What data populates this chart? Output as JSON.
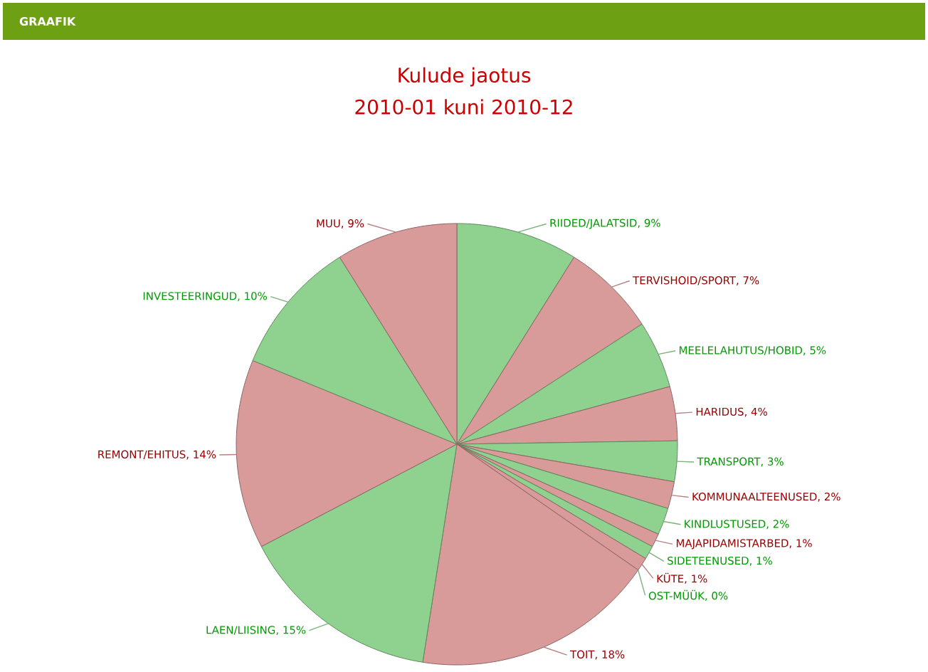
{
  "chart_data": {
    "type": "pie",
    "title": "Kulude jaotus",
    "subtitle": "2010-01 kuni 2010-12",
    "annotations": [
      "GRAAFIK"
    ],
    "categories": [
      "RIIDED/JALATSID",
      "TERVISHOID/SPORT",
      "MEELELAHUTUS/HOBID",
      "HARIDUS",
      "TRANSPORT",
      "KOMMUNAALTEENUSED",
      "KINDLUSTUSED",
      "MAJAPIDAMISTARBED",
      "SIDETEENUSED",
      "KÜTE",
      "OST-MÜÜK",
      "TOIT",
      "LAEN/LIISING",
      "REMONT/EHITUS",
      "INVESTEERINGUD",
      "MUU"
    ],
    "values": [
      9,
      7,
      5,
      4,
      3,
      2,
      2,
      1,
      1,
      1,
      0,
      18,
      15,
      14,
      10,
      9
    ],
    "value_labels": [
      ", 9%",
      ", 7%",
      ", 5%",
      ", 4%",
      ", 3%",
      ", 2%",
      ", 2%",
      ", 1%",
      ", 1%",
      ", 1%",
      ", 0%",
      ", 18%",
      ", 15%",
      ", 14%",
      ", 10%",
      ", 9%"
    ],
    "colors": [
      "#8fd18f",
      "#d99a9a",
      "#8fd18f",
      "#d99a9a",
      "#8fd18f",
      "#d99a9a",
      "#8fd18f",
      "#d99a9a",
      "#8fd18f",
      "#d99a9a",
      "#8fd18f",
      "#d99a9a",
      "#8fd18f",
      "#d99a9a",
      "#8fd18f",
      "#d99a9a"
    ]
  }
}
